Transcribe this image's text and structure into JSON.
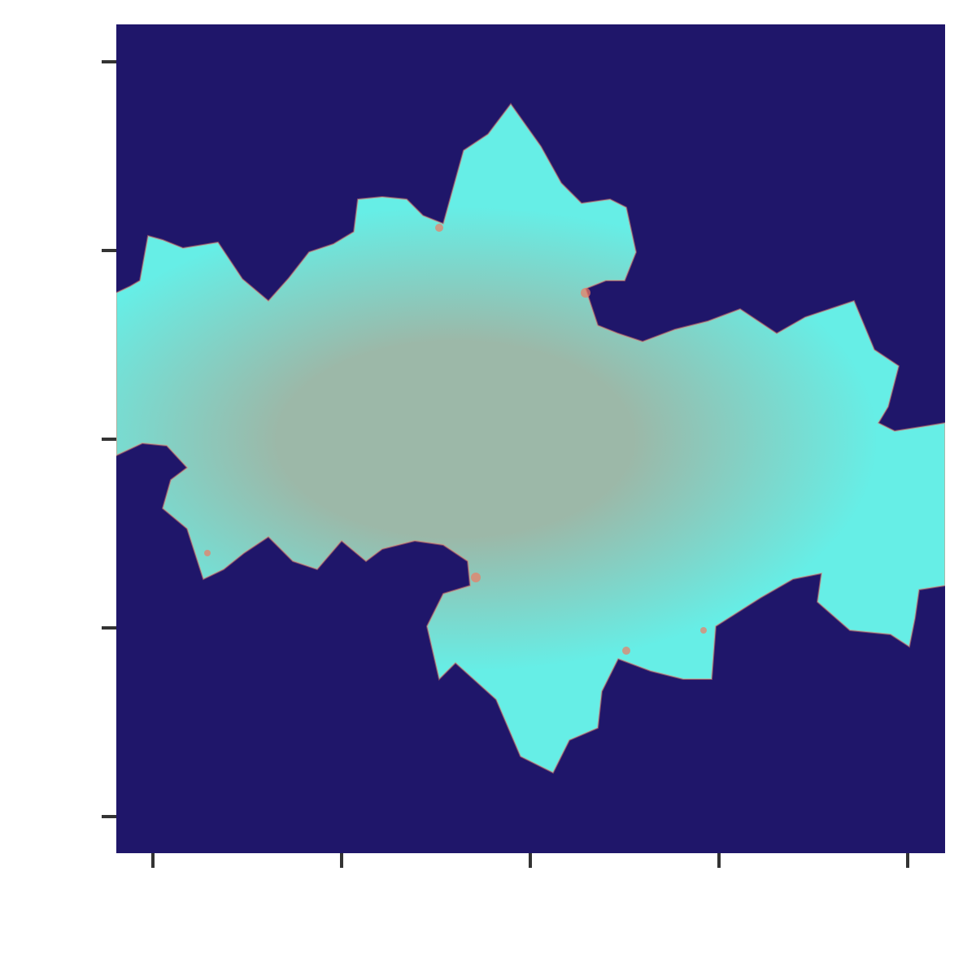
{
  "chart_data": {
    "type": "heatmap",
    "title": "",
    "xlabel": "",
    "ylabel": "",
    "grid": false,
    "legend": "none",
    "x_ticks": [
      "",
      "",
      "",
      "",
      ""
    ],
    "y_ticks": [
      "",
      "",
      "",
      "",
      ""
    ],
    "colors": {
      "background": "#1f166a",
      "outer": "#66eee6",
      "middle": "#9cb8a8",
      "edge": "#f07a63"
    }
  }
}
